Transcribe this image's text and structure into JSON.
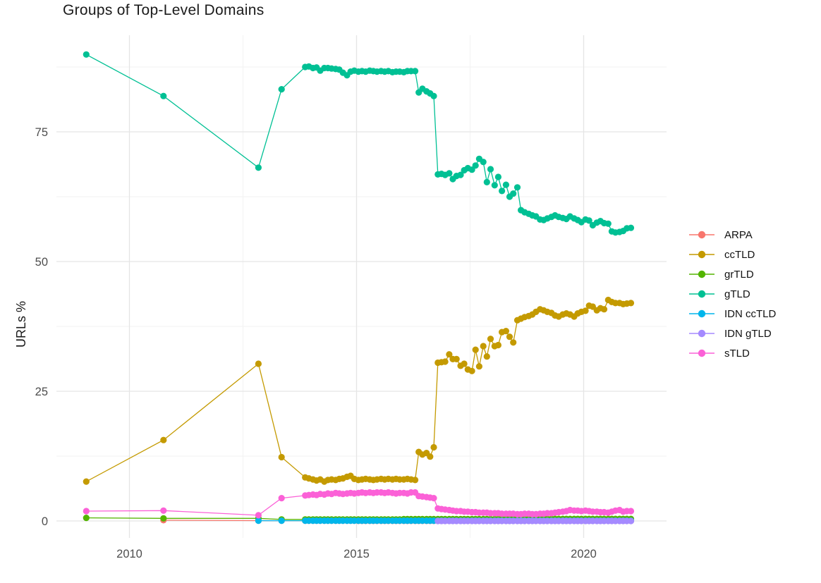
{
  "chart_data": {
    "type": "line",
    "title": "Groups of Top-Level Domains",
    "xlabel": "",
    "ylabel": "URLs %",
    "grid": true,
    "legend_position": "right",
    "xlim": [
      2008.4,
      2021.8
    ],
    "ylim": [
      -3,
      94
    ],
    "x_ticks": [
      2010,
      2015,
      2020
    ],
    "x_tick_labels": [
      "2010",
      "2015",
      "2020"
    ],
    "x_minor_ticks": [
      2012.5,
      2017.5
    ],
    "y_ticks": [
      0,
      25,
      50,
      75
    ],
    "y_tick_labels": [
      "0",
      "25",
      "50",
      "75"
    ],
    "y_minor_ticks": [
      12.5,
      37.5,
      62.5,
      87.5
    ],
    "x_monthly": [
      2013.95,
      2014.04,
      2014.12,
      2014.2,
      2014.29,
      2014.37,
      2014.45,
      2014.54,
      2014.62,
      2014.7,
      2014.79,
      2014.87,
      2014.95,
      2015.04,
      2015.12,
      2015.2,
      2015.29,
      2015.37,
      2015.45,
      2015.54,
      2015.62,
      2015.7,
      2015.79,
      2015.87,
      2015.95,
      2016.04,
      2016.12,
      2016.2,
      2016.29,
      2016.37,
      2016.45,
      2016.54,
      2016.62,
      2016.7,
      2016.79,
      2016.87,
      2016.95,
      2017.04,
      2017.12,
      2017.2,
      2017.29,
      2017.37,
      2017.45,
      2017.54,
      2017.62,
      2017.7,
      2017.79,
      2017.87,
      2017.95,
      2018.04,
      2018.12,
      2018.2,
      2018.29,
      2018.37,
      2018.45,
      2018.54,
      2018.62,
      2018.7,
      2018.79,
      2018.87,
      2018.95,
      2019.04,
      2019.12,
      2019.2,
      2019.29,
      2019.37,
      2019.45,
      2019.54,
      2019.62,
      2019.7,
      2019.79,
      2019.87,
      2019.95,
      2020.04,
      2020.12,
      2020.2,
      2020.29,
      2020.37,
      2020.45,
      2020.54,
      2020.62,
      2020.7,
      2020.79,
      2020.87,
      2020.95,
      2021.04
    ],
    "series": [
      {
        "name": "ARPA",
        "color": "#F8766D",
        "early": [
          [
            2010.75,
            0.15
          ],
          [
            2012.84,
            0.07
          ],
          [
            2013.35,
            0.05
          ],
          [
            2013.87,
            0.05
          ]
        ],
        "monthly": [
          0.05,
          0.05,
          0.05,
          0.05,
          0.05,
          0.05,
          0.05,
          0.05,
          0.05,
          0.05,
          0.05,
          0.05,
          0.05,
          0.02,
          0.02,
          0.02,
          0.02,
          0.02,
          0.02,
          0.02,
          0.02,
          0.02,
          0.02,
          0.02,
          0.02,
          0.02,
          0.02,
          0.02,
          0.02,
          0.02,
          0.02,
          0.02,
          0.02,
          0.02,
          0.02,
          0.02,
          0.02,
          0.02,
          0.02,
          0.02,
          0.02,
          0.02,
          0.02,
          0.02,
          0.02,
          0.02,
          0.02,
          0.02,
          0.02,
          0.02,
          0.02,
          0.02,
          0.02,
          0.02,
          0.02,
          0.02,
          0.02,
          0.02,
          0.02,
          0.02,
          0.02,
          0.02,
          0.02,
          0.02,
          0.02,
          0.02,
          0.02,
          0.02,
          0.02,
          0.02,
          0.02,
          0.02,
          0.02,
          0.02,
          0.02,
          0.02,
          0.02,
          0.02,
          0.02,
          0.02,
          0.02,
          0.02,
          0.02,
          0.02,
          0.02,
          0.02
        ]
      },
      {
        "name": "ccTLD",
        "color": "#C49A00",
        "early": [
          [
            2009.05,
            7.6
          ],
          [
            2010.75,
            15.6
          ],
          [
            2012.84,
            30.3
          ],
          [
            2013.35,
            12.3
          ],
          [
            2013.87,
            8.4
          ]
        ],
        "monthly": [
          8.2,
          8.0,
          7.8,
          8.0,
          7.6,
          7.9,
          8.0,
          7.9,
          8.1,
          8.2,
          8.5,
          8.7,
          8.1,
          7.9,
          8.0,
          8.1,
          8.0,
          7.9,
          8.0,
          8.1,
          8.0,
          8.1,
          8.0,
          8.1,
          8.0,
          8.0,
          8.1,
          8.0,
          7.9,
          13.3,
          12.8,
          13.1,
          12.4,
          14.2,
          30.5,
          30.6,
          30.7,
          32.1,
          31.2,
          31.2,
          29.9,
          30.3,
          29.2,
          28.9,
          33.0,
          29.8,
          33.7,
          31.7,
          35.1,
          33.7,
          33.9,
          36.4,
          36.6,
          35.5,
          34.4,
          38.7,
          39.0,
          39.3,
          39.5,
          39.8,
          40.3,
          40.8,
          40.6,
          40.3,
          40.1,
          39.6,
          39.4,
          39.8,
          40.0,
          39.8,
          39.4,
          40.0,
          40.3,
          40.5,
          41.5,
          41.3,
          40.6,
          41.0,
          40.8,
          42.6,
          42.2,
          42.0,
          42.0,
          41.8,
          41.9,
          42.0
        ]
      },
      {
        "name": "grTLD",
        "color": "#53B400",
        "early": [
          [
            2009.05,
            0.6
          ],
          [
            2010.75,
            0.5
          ],
          [
            2012.84,
            0.5
          ],
          [
            2013.35,
            0.3
          ],
          [
            2013.87,
            0.3
          ]
        ],
        "monthly": [
          0.3,
          0.3,
          0.3,
          0.3,
          0.3,
          0.3,
          0.3,
          0.3,
          0.3,
          0.3,
          0.3,
          0.3,
          0.3,
          0.3,
          0.3,
          0.3,
          0.3,
          0.3,
          0.3,
          0.3,
          0.3,
          0.3,
          0.3,
          0.3,
          0.3,
          0.35,
          0.35,
          0.35,
          0.35,
          0.35,
          0.35,
          0.35,
          0.35,
          0.35,
          0.35,
          0.35,
          0.35,
          0.35,
          0.35,
          0.35,
          0.35,
          0.35,
          0.35,
          0.35,
          0.35,
          0.35,
          0.35,
          0.35,
          0.35,
          0.35,
          0.35,
          0.35,
          0.35,
          0.35,
          0.35,
          0.35,
          0.35,
          0.35,
          0.35,
          0.35,
          0.35,
          0.4,
          0.4,
          0.4,
          0.4,
          0.4,
          0.4,
          0.4,
          0.4,
          0.4,
          0.4,
          0.4,
          0.4,
          0.4,
          0.4,
          0.4,
          0.4,
          0.4,
          0.4,
          0.4,
          0.4,
          0.4,
          0.4,
          0.4,
          0.4,
          0.4
        ]
      },
      {
        "name": "gTLD",
        "color": "#00C094",
        "early": [
          [
            2009.05,
            89.9
          ],
          [
            2010.75,
            81.9
          ],
          [
            2012.84,
            68.1
          ],
          [
            2013.35,
            83.2
          ],
          [
            2013.87,
            87.5
          ]
        ],
        "monthly": [
          87.6,
          87.3,
          87.4,
          86.8,
          87.3,
          87.3,
          87.2,
          87.1,
          87.0,
          86.4,
          85.9,
          86.6,
          86.8,
          86.6,
          86.7,
          86.6,
          86.8,
          86.7,
          86.6,
          86.7,
          86.6,
          86.7,
          86.5,
          86.6,
          86.6,
          86.5,
          86.7,
          86.7,
          86.7,
          82.6,
          83.3,
          82.8,
          82.4,
          81.9,
          66.8,
          66.9,
          66.7,
          67.0,
          65.9,
          66.5,
          66.7,
          67.6,
          68.0,
          67.7,
          68.5,
          69.8,
          69.2,
          65.3,
          67.8,
          64.7,
          66.3,
          63.6,
          64.8,
          62.5,
          63.1,
          64.3,
          59.9,
          59.5,
          59.2,
          58.9,
          58.7,
          58.1,
          58.0,
          58.3,
          58.6,
          58.9,
          58.6,
          58.4,
          58.2,
          58.7,
          58.3,
          58.0,
          57.6,
          58.1,
          57.9,
          57.0,
          57.5,
          57.8,
          57.4,
          57.3,
          55.8,
          55.6,
          55.7,
          55.9,
          56.4,
          56.5
        ]
      },
      {
        "name": "IDN ccTLD",
        "color": "#00B6EB",
        "early": [
          [
            2012.84,
            0.05
          ],
          [
            2013.35,
            0.05
          ],
          [
            2013.87,
            0.05
          ]
        ],
        "monthly": [
          0.05,
          0.05,
          0.05,
          0.05,
          0.05,
          0.05,
          0.05,
          0.05,
          0.05,
          0.05,
          0.05,
          0.05,
          0.05,
          0.05,
          0.05,
          0.05,
          0.05,
          0.05,
          0.05,
          0.05,
          0.05,
          0.05,
          0.05,
          0.05,
          0.05,
          0.05,
          0.05,
          0.05,
          0.05,
          0.05,
          0.05,
          0.05,
          0.05,
          0.05,
          0.05,
          0.05,
          0.05,
          0.05,
          0.05,
          0.05,
          0.05,
          0.05,
          0.05,
          0.05,
          0.05,
          0.05,
          0.05,
          0.05,
          0.05,
          0.05,
          0.05,
          0.05,
          0.05,
          0.05,
          0.05,
          0.05,
          0.05,
          0.05,
          0.05,
          0.05,
          0.05,
          0.05,
          0.05,
          0.05,
          0.05,
          0.05,
          0.05,
          0.05,
          0.05,
          0.05,
          0.05,
          0.05,
          0.05,
          0.05,
          0.05,
          0.05,
          0.05,
          0.05,
          0.05,
          0.05,
          0.05,
          0.05,
          0.05,
          0.05,
          0.05,
          0.05
        ]
      },
      {
        "name": "IDN gTLD",
        "color": "#A58AFF",
        "early": [],
        "monthly": [
          null,
          null,
          null,
          null,
          null,
          null,
          null,
          null,
          null,
          null,
          null,
          null,
          null,
          null,
          null,
          null,
          null,
          null,
          null,
          null,
          null,
          null,
          null,
          null,
          null,
          null,
          null,
          null,
          null,
          null,
          null,
          null,
          null,
          null,
          0,
          0,
          0,
          0,
          0,
          0,
          0,
          0,
          0,
          0,
          0,
          0,
          0,
          0,
          0,
          0,
          0,
          0,
          0,
          0,
          0,
          0,
          0,
          0,
          0,
          0,
          0,
          0,
          0,
          0,
          0,
          0,
          0,
          0,
          0,
          0,
          0,
          0,
          0,
          0,
          0,
          0,
          0,
          0,
          0,
          0,
          0,
          0,
          0,
          0,
          0,
          0
        ]
      },
      {
        "name": "sTLD",
        "color": "#FB61D7",
        "early": [
          [
            2009.05,
            1.9
          ],
          [
            2010.75,
            2.0
          ],
          [
            2012.84,
            1.1
          ],
          [
            2013.35,
            4.4
          ],
          [
            2013.87,
            4.9
          ]
        ],
        "monthly": [
          5.0,
          5.1,
          5.0,
          5.2,
          5.1,
          5.3,
          5.2,
          5.4,
          5.3,
          5.2,
          5.3,
          5.4,
          5.3,
          5.4,
          5.5,
          5.4,
          5.5,
          5.4,
          5.5,
          5.5,
          5.4,
          5.5,
          5.4,
          5.3,
          5.4,
          5.4,
          5.3,
          5.5,
          5.5,
          4.8,
          4.7,
          4.6,
          4.5,
          4.4,
          2.4,
          2.3,
          2.2,
          2.1,
          2.0,
          1.9,
          1.9,
          1.8,
          1.8,
          1.7,
          1.7,
          1.6,
          1.6,
          1.6,
          1.5,
          1.5,
          1.5,
          1.4,
          1.4,
          1.4,
          1.4,
          1.3,
          1.3,
          1.4,
          1.4,
          1.3,
          1.3,
          1.4,
          1.4,
          1.5,
          1.5,
          1.6,
          1.7,
          1.8,
          1.9,
          2.1,
          2.0,
          2.0,
          1.9,
          2.0,
          1.9,
          1.8,
          1.8,
          1.7,
          1.7,
          1.6,
          1.8,
          2.0,
          2.1,
          1.8,
          1.9,
          1.9
        ]
      }
    ]
  }
}
